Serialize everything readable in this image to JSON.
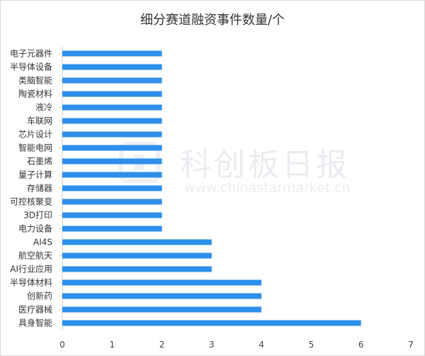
{
  "chart_data": {
    "type": "bar",
    "orientation": "horizontal",
    "title": "细分赛道融资事件数量/个",
    "categories": [
      "电子元器件",
      "半导体设备",
      "类脑智能",
      "陶瓷材料",
      "液冷",
      "车联网",
      "芯片设计",
      "智能电网",
      "石墨烯",
      "量子计算",
      "存储器",
      "可控核聚变",
      "3D打印",
      "电力设备",
      "AI4S",
      "航空航天",
      "AI行业应用",
      "半导体材料",
      "创新药",
      "医疗器械",
      "具身智能"
    ],
    "values": [
      2,
      2,
      2,
      2,
      2,
      2,
      2,
      2,
      2,
      2,
      2,
      2,
      2,
      2,
      3,
      3,
      3,
      4,
      4,
      4,
      6
    ],
    "xlim": [
      0,
      7
    ],
    "xticks": [
      0,
      1,
      2,
      3,
      4,
      5,
      6,
      7
    ],
    "grid": false,
    "legend": "none",
    "bar_color": "#2e8fea"
  },
  "watermark": {
    "name": "科创板日报",
    "url": "www.chinastarmarket.cn"
  }
}
